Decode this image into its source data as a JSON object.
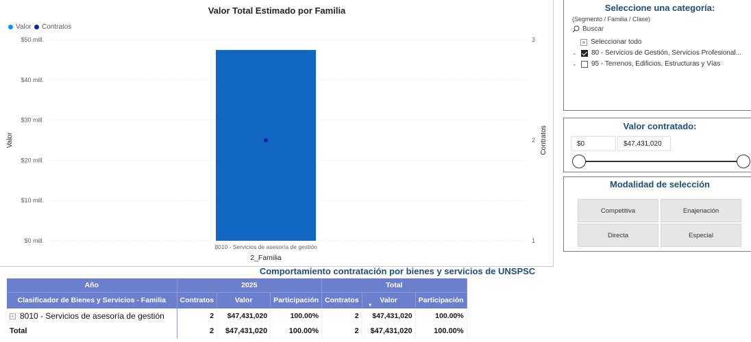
{
  "chart": {
    "title": "Valor Total Estimado por Familia",
    "legend": [
      {
        "label": "Valor",
        "color": "#118dff"
      },
      {
        "label": "Contratos",
        "color": "#12239e"
      }
    ],
    "ylabel": "Valor",
    "y2label": "Contratos",
    "xlabel": "2_Familia"
  },
  "chart_data": {
    "type": "bar",
    "categories": [
      "8010 - Servicios de asesoría de gestión"
    ],
    "series": [
      {
        "name": "Valor",
        "type": "bar",
        "axis": "left",
        "values": [
          47431020
        ],
        "color": "#0f67c2"
      },
      {
        "name": "Contratos",
        "type": "scatter",
        "axis": "right",
        "values": [
          2
        ],
        "color": "#12239e"
      }
    ],
    "y_ticks": [
      "$0 mill.",
      "$10 mill.",
      "$20 mill.",
      "$30 mill.",
      "$40 mill.",
      "$50 mill."
    ],
    "y_tick_values": [
      0,
      10000000,
      20000000,
      30000000,
      40000000,
      50000000
    ],
    "y2_ticks": [
      "1",
      "2",
      "3"
    ],
    "y2_tick_values": [
      1,
      2,
      3
    ],
    "ylim": [
      0,
      50000000
    ],
    "y2lim": [
      1,
      3
    ],
    "title": "Valor Total Estimado por Familia",
    "xlabel": "2_Familia",
    "ylabel": "Valor",
    "y2label": "Contratos",
    "grid": true,
    "legend_position": "top-left"
  },
  "category_filter": {
    "title": "Seleccione una categoría:",
    "subtitle": "(Segmento / Familia / Clase)",
    "search_placeholder": "Buscar",
    "select_all": "Seleccionar todo",
    "items": [
      {
        "label": "80 - Servicios de Gestión, Servicios Profesional...",
        "checked": true
      },
      {
        "label": "95 - Terrenos, Edificios, Estructuras y Vías",
        "checked": false
      }
    ]
  },
  "value_filter": {
    "title": "Valor contratado:",
    "min": "$0",
    "max": "$47,431,020"
  },
  "modality": {
    "title": "Modalidad de selección",
    "options": [
      "Competitiva",
      "Enajenación",
      "Directa",
      "Especial"
    ]
  },
  "table": {
    "title": "Comportamiento contratación por bienes y servicios de UNSPSC",
    "header_year_label": "Año",
    "header_year": "2025",
    "header_total": "Total",
    "columns": [
      "Clasificador de Bienes y Servicios - Familia",
      "Contratos",
      "Valor",
      "Participación",
      "Contratos",
      "Valor",
      "Participación"
    ],
    "rows": [
      [
        "8010 - Servicios de asesoría de gestión",
        "2",
        "$47,431,020",
        "100.00%",
        "2",
        "$47,431,020",
        "100.00%"
      ]
    ],
    "total": [
      "Total",
      "2",
      "$47,431,020",
      "100.00%",
      "2",
      "$47,431,020",
      "100.00%"
    ]
  }
}
